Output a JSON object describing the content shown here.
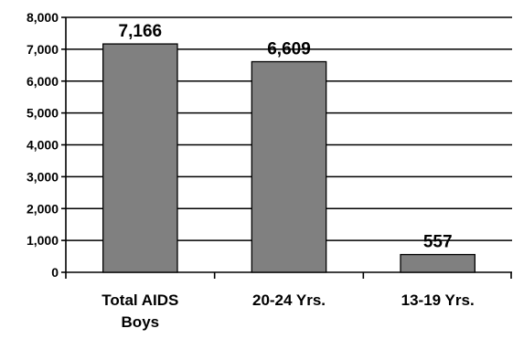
{
  "chart_data": {
    "type": "bar",
    "title": "",
    "xlabel": "",
    "ylabel": "",
    "categories": [
      "Total AIDS Boys",
      "20-24 Yrs.",
      "13-19 Yrs."
    ],
    "values": [
      7166,
      6609,
      557
    ],
    "data_labels": [
      "7,166",
      "6,609",
      "557"
    ],
    "ylim": [
      0,
      8000
    ],
    "y_ticks": [
      0,
      1000,
      2000,
      3000,
      4000,
      5000,
      6000,
      7000,
      8000
    ],
    "y_tick_labels": [
      "0",
      "1,000",
      "2,000",
      "3,000",
      "4,000",
      "5,000",
      "6,000",
      "7,000",
      "8,000"
    ],
    "grid": true,
    "legend": false,
    "colors": {
      "bar": "#808080",
      "bar_border": "#000000",
      "grid": "#000000"
    }
  }
}
